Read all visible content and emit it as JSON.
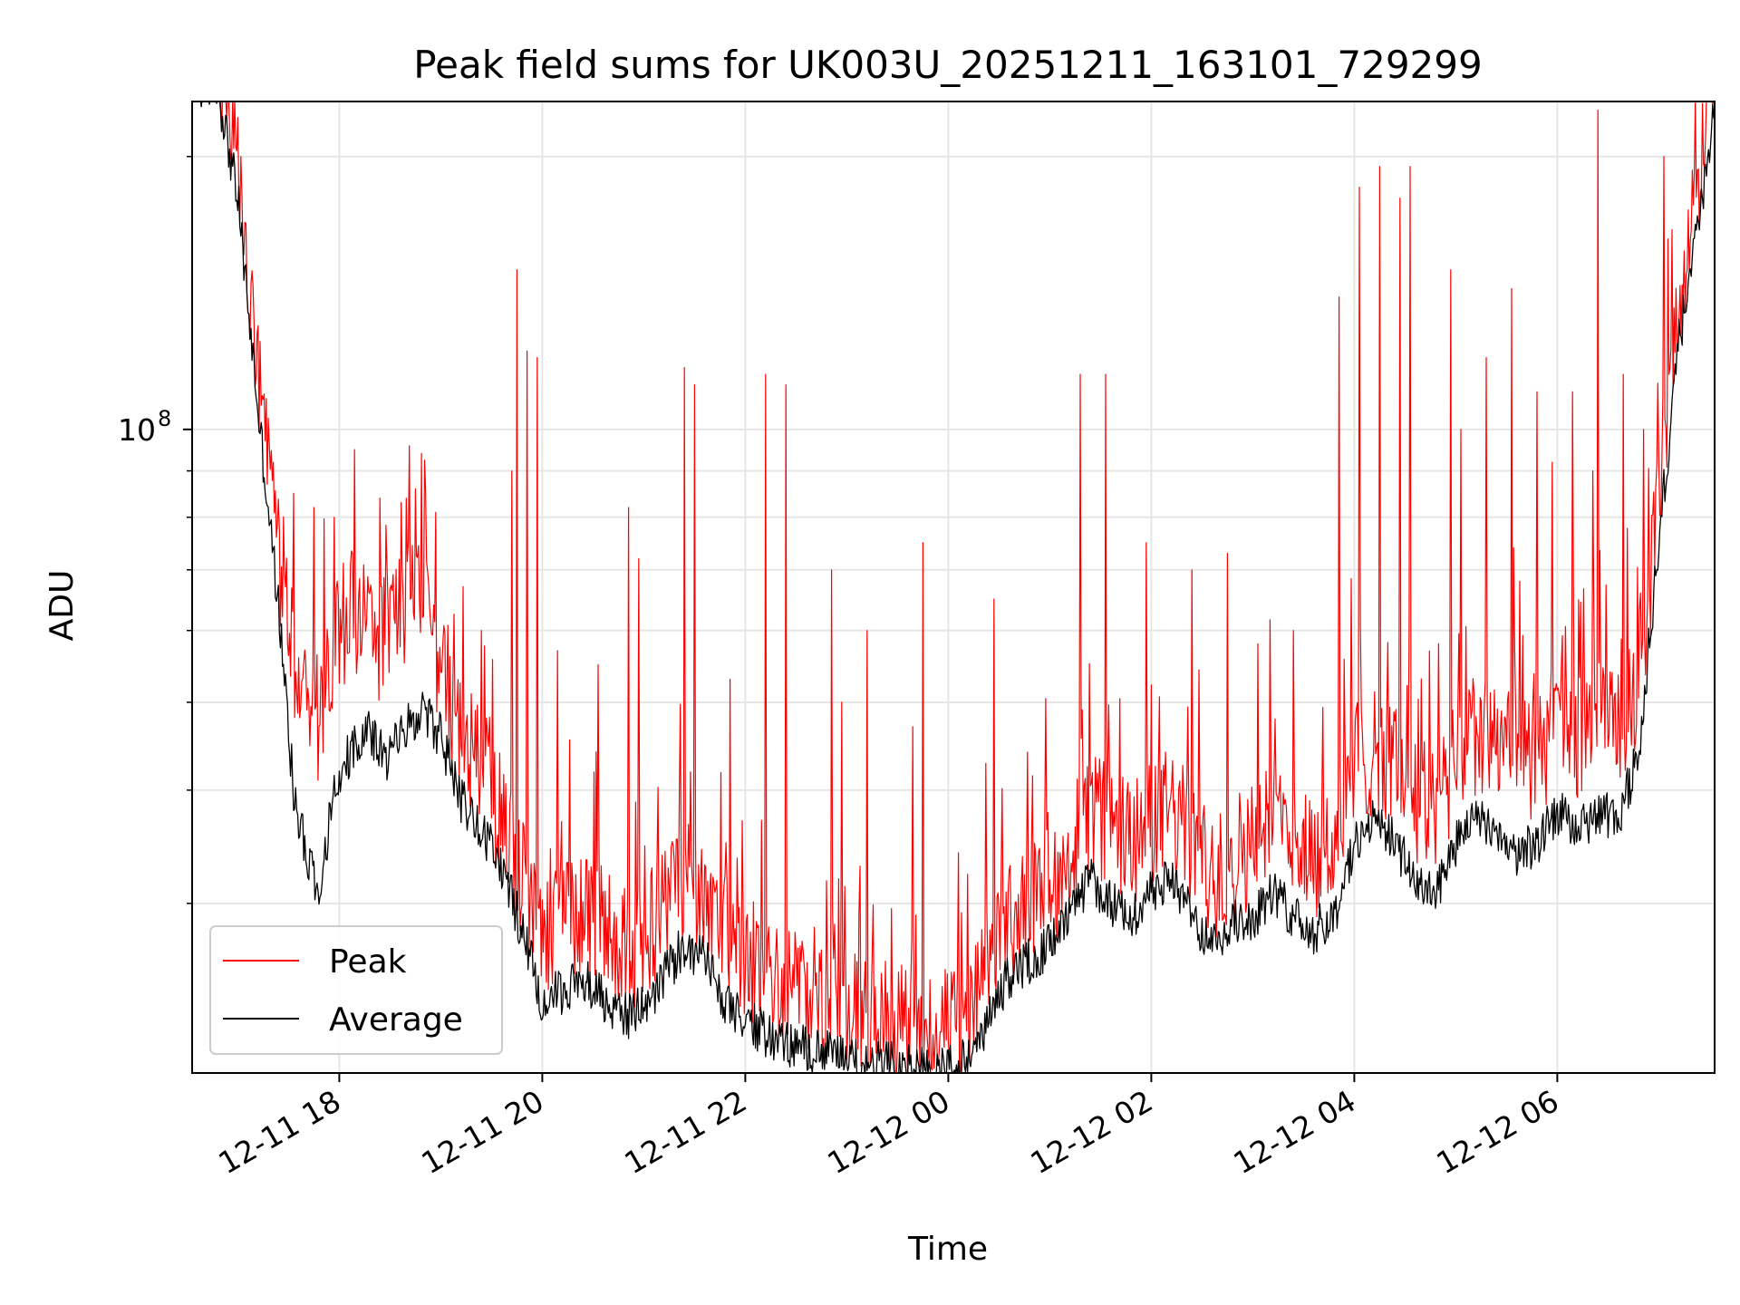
{
  "chart_data": {
    "type": "line",
    "title": "Peak field sums for UK003U_20251211_163101_729299",
    "xlabel": "Time",
    "ylabel": "ADU",
    "yscale": "log",
    "ylim": [
      19500000,
      230000000
    ],
    "xlim_hours": [
      16.55,
      31.55
    ],
    "grid": true,
    "legend_position": "lower-left",
    "x_ticks": [
      {
        "hours": 18,
        "label": "12-11 18"
      },
      {
        "hours": 20,
        "label": "12-11 20"
      },
      {
        "hours": 22,
        "label": "12-11 22"
      },
      {
        "hours": 24,
        "label": "12-12 00"
      },
      {
        "hours": 26,
        "label": "12-12 02"
      },
      {
        "hours": 28,
        "label": "12-12 04"
      },
      {
        "hours": 30,
        "label": "12-12 06"
      }
    ],
    "y_major_ticks": [
      {
        "value": 100000000,
        "label_base": "10",
        "label_exp": "8"
      }
    ],
    "y_minor_ticks": [
      30000000,
      40000000,
      50000000,
      60000000,
      70000000,
      80000000,
      90000000,
      200000000
    ],
    "series": [
      {
        "name": "Peak",
        "color": "#ff0000",
        "baseline_ratio": 1.12,
        "spikes": [
          [
            17.15,
            82000000
          ],
          [
            17.35,
            92000000
          ],
          [
            17.55,
            85000000
          ],
          [
            17.75,
            82000000
          ],
          [
            17.95,
            80000000
          ],
          [
            18.15,
            95000000
          ],
          [
            18.4,
            84000000
          ],
          [
            18.75,
            86000000
          ],
          [
            19.4,
            60000000
          ],
          [
            19.7,
            90000000
          ],
          [
            19.75,
            150000000
          ],
          [
            19.85,
            122000000
          ],
          [
            19.95,
            120000000
          ],
          [
            20.15,
            57000000
          ],
          [
            20.55,
            55000000
          ],
          [
            20.85,
            82000000
          ],
          [
            20.95,
            72000000
          ],
          [
            21.4,
            117000000
          ],
          [
            21.5,
            112000000
          ],
          [
            21.85,
            53000000
          ],
          [
            22.2,
            115000000
          ],
          [
            22.4,
            112000000
          ],
          [
            22.85,
            70000000
          ],
          [
            22.95,
            50000000
          ],
          [
            23.2,
            60000000
          ],
          [
            23.65,
            47000000
          ],
          [
            23.75,
            75000000
          ],
          [
            24.45,
            65000000
          ],
          [
            25.3,
            115000000
          ],
          [
            25.55,
            115000000
          ],
          [
            25.95,
            75000000
          ],
          [
            26.4,
            70000000
          ],
          [
            26.75,
            73000000
          ],
          [
            27.05,
            58000000
          ],
          [
            27.4,
            60000000
          ],
          [
            27.85,
            140000000
          ],
          [
            28.05,
            185000000
          ],
          [
            28.25,
            195000000
          ],
          [
            28.45,
            180000000
          ],
          [
            28.55,
            195000000
          ],
          [
            28.95,
            150000000
          ],
          [
            29.05,
            100000000
          ],
          [
            29.3,
            120000000
          ],
          [
            29.55,
            143000000
          ],
          [
            29.8,
            110000000
          ],
          [
            29.95,
            92000000
          ],
          [
            30.15,
            110000000
          ],
          [
            30.35,
            90000000
          ],
          [
            30.4,
            225000000
          ],
          [
            30.65,
            115000000
          ],
          [
            30.85,
            100000000
          ],
          [
            31.05,
            200000000
          ]
        ],
        "points": [
          [
            16.55,
            240000000
          ],
          [
            16.8,
            240000000
          ],
          [
            17.0,
            180000000
          ],
          [
            17.2,
            105000000
          ],
          [
            17.4,
            70000000
          ],
          [
            17.6,
            50000000
          ],
          [
            17.8,
            45000000
          ],
          [
            18.0,
            58000000
          ],
          [
            18.2,
            60000000
          ],
          [
            18.4,
            55000000
          ],
          [
            18.6,
            62000000
          ],
          [
            18.8,
            60000000
          ],
          [
            19.0,
            52000000
          ],
          [
            19.2,
            44000000
          ],
          [
            19.4,
            40000000
          ],
          [
            19.6,
            35000000
          ],
          [
            19.8,
            30000000
          ],
          [
            20.0,
            26000000
          ],
          [
            20.2,
            27000000
          ],
          [
            20.4,
            28000000
          ],
          [
            20.6,
            27000000
          ],
          [
            20.8,
            25000000
          ],
          [
            21.0,
            26000000
          ],
          [
            21.2,
            28000000
          ],
          [
            21.4,
            30000000
          ],
          [
            21.6,
            29000000
          ],
          [
            21.8,
            26000000
          ],
          [
            22.0,
            25000000
          ],
          [
            22.2,
            23500000
          ],
          [
            22.4,
            23000000
          ],
          [
            22.6,
            22500000
          ],
          [
            22.8,
            22000000
          ],
          [
            23.0,
            21500000
          ],
          [
            23.2,
            21000000
          ],
          [
            23.4,
            21000000
          ],
          [
            23.6,
            20800000
          ],
          [
            23.8,
            20500000
          ],
          [
            24.0,
            20500000
          ],
          [
            24.2,
            21000000
          ],
          [
            24.4,
            24000000
          ],
          [
            24.6,
            27000000
          ],
          [
            24.8,
            28000000
          ],
          [
            25.0,
            30000000
          ],
          [
            25.2,
            32000000
          ],
          [
            25.4,
            36000000
          ],
          [
            25.6,
            34000000
          ],
          [
            25.8,
            33000000
          ],
          [
            26.0,
            35000000
          ],
          [
            26.2,
            36000000
          ],
          [
            26.4,
            33000000
          ],
          [
            26.6,
            30000000
          ],
          [
            26.8,
            32000000
          ],
          [
            27.0,
            33000000
          ],
          [
            27.2,
            35000000
          ],
          [
            27.4,
            33000000
          ],
          [
            27.6,
            32000000
          ],
          [
            27.8,
            33000000
          ],
          [
            28.0,
            40000000
          ],
          [
            28.2,
            42000000
          ],
          [
            28.4,
            40000000
          ],
          [
            28.6,
            37000000
          ],
          [
            28.8,
            36000000
          ],
          [
            29.0,
            40000000
          ],
          [
            29.2,
            44000000
          ],
          [
            29.4,
            42000000
          ],
          [
            29.6,
            40000000
          ],
          [
            29.8,
            41000000
          ],
          [
            30.0,
            45000000
          ],
          [
            30.2,
            43000000
          ],
          [
            30.4,
            45000000
          ],
          [
            30.6,
            44000000
          ],
          [
            30.8,
            50000000
          ],
          [
            31.0,
            80000000
          ],
          [
            31.2,
            130000000
          ],
          [
            31.4,
            175000000
          ],
          [
            31.55,
            230000000
          ]
        ]
      },
      {
        "name": "Average",
        "color": "#000000",
        "points": [
          [
            16.55,
            240000000
          ],
          [
            16.8,
            240000000
          ],
          [
            17.0,
            180000000
          ],
          [
            17.2,
            105000000
          ],
          [
            17.4,
            64000000
          ],
          [
            17.55,
            40000000
          ],
          [
            17.7,
            33000000
          ],
          [
            17.8,
            31000000
          ],
          [
            17.95,
            40000000
          ],
          [
            18.1,
            44000000
          ],
          [
            18.3,
            47000000
          ],
          [
            18.45,
            43000000
          ],
          [
            18.6,
            46000000
          ],
          [
            18.8,
            49000000
          ],
          [
            19.0,
            46000000
          ],
          [
            19.2,
            39000000
          ],
          [
            19.4,
            36000000
          ],
          [
            19.6,
            33000000
          ],
          [
            19.8,
            28000000
          ],
          [
            20.0,
            23500000
          ],
          [
            20.2,
            24000000
          ],
          [
            20.4,
            25000000
          ],
          [
            20.6,
            23500000
          ],
          [
            20.8,
            22500000
          ],
          [
            21.0,
            23000000
          ],
          [
            21.2,
            25000000
          ],
          [
            21.4,
            27000000
          ],
          [
            21.6,
            26000000
          ],
          [
            21.8,
            23500000
          ],
          [
            22.0,
            22500000
          ],
          [
            22.2,
            21500000
          ],
          [
            22.4,
            21000000
          ],
          [
            22.6,
            20800000
          ],
          [
            22.8,
            20500000
          ],
          [
            23.0,
            20200000
          ],
          [
            23.2,
            20000000
          ],
          [
            23.4,
            20000000
          ],
          [
            23.6,
            19800000
          ],
          [
            23.8,
            19600000
          ],
          [
            24.0,
            19800000
          ],
          [
            24.2,
            20200000
          ],
          [
            24.4,
            22500000
          ],
          [
            24.6,
            25000000
          ],
          [
            24.8,
            26000000
          ],
          [
            25.0,
            27000000
          ],
          [
            25.2,
            29000000
          ],
          [
            25.4,
            32000000
          ],
          [
            25.6,
            30000000
          ],
          [
            25.8,
            29000000
          ],
          [
            26.0,
            31000000
          ],
          [
            26.2,
            32000000
          ],
          [
            26.4,
            29000000
          ],
          [
            26.6,
            27000000
          ],
          [
            26.8,
            28500000
          ],
          [
            27.0,
            29000000
          ],
          [
            27.2,
            31000000
          ],
          [
            27.4,
            29000000
          ],
          [
            27.6,
            28000000
          ],
          [
            27.8,
            29000000
          ],
          [
            28.0,
            35000000
          ],
          [
            28.2,
            37000000
          ],
          [
            28.4,
            35000000
          ],
          [
            28.6,
            32000000
          ],
          [
            28.8,
            31000000
          ],
          [
            29.0,
            35000000
          ],
          [
            29.2,
            38000000
          ],
          [
            29.4,
            36000000
          ],
          [
            29.6,
            34000000
          ],
          [
            29.8,
            35000000
          ],
          [
            30.0,
            38000000
          ],
          [
            30.2,
            36000000
          ],
          [
            30.4,
            38000000
          ],
          [
            30.6,
            37000000
          ],
          [
            30.8,
            44000000
          ],
          [
            31.0,
            75000000
          ],
          [
            31.2,
            125000000
          ],
          [
            31.4,
            170000000
          ],
          [
            31.55,
            225000000
          ]
        ]
      }
    ]
  }
}
